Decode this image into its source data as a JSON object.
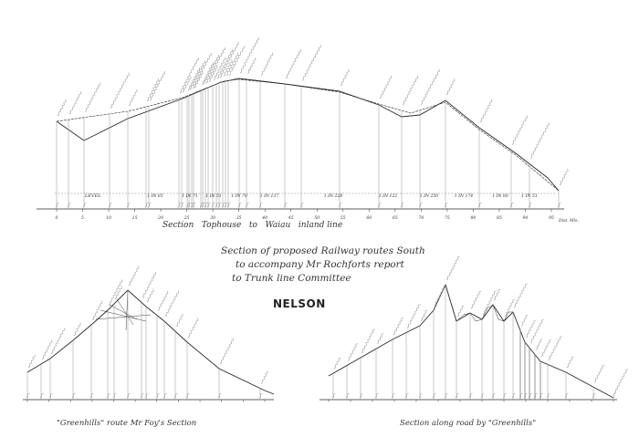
{
  "title_block": {
    "lines": [
      "Section of proposed Railway routes South",
      "to accompany Mr Rochforts report",
      "to Trunk line Committee"
    ],
    "place": "NELSON"
  },
  "main_section": {
    "caption": "Section   Tophouse   to   Waiau   inland line",
    "level_label": "LEVEL",
    "gradient_labels": [
      "1 IN 85",
      "1 IN 71",
      "1 IN 51",
      "1 IN 70",
      "1 IN 137",
      "1 IN 228",
      "1 IN 122",
      "1 IN 250",
      "1 IN 174",
      "1 IN 80",
      "1 IN 51"
    ],
    "mileage_labels": [
      "0",
      "5",
      "10",
      "15",
      "20",
      "25",
      "30",
      "35",
      "40",
      "45",
      "50",
      "55",
      "60",
      "65",
      "70",
      "75",
      "80",
      "85",
      "90",
      "95"
    ],
    "end_note": "Dist. Mls."
  },
  "left_section": {
    "caption": "\"Greenhills\" route Mr Foy's Section"
  },
  "right_section": {
    "caption": "Section along road by \"Greenhills\""
  },
  "colors": {
    "ink": "#2a2a2a",
    "faint_ink": "#8a8a8a",
    "paper": "#ffffff"
  }
}
